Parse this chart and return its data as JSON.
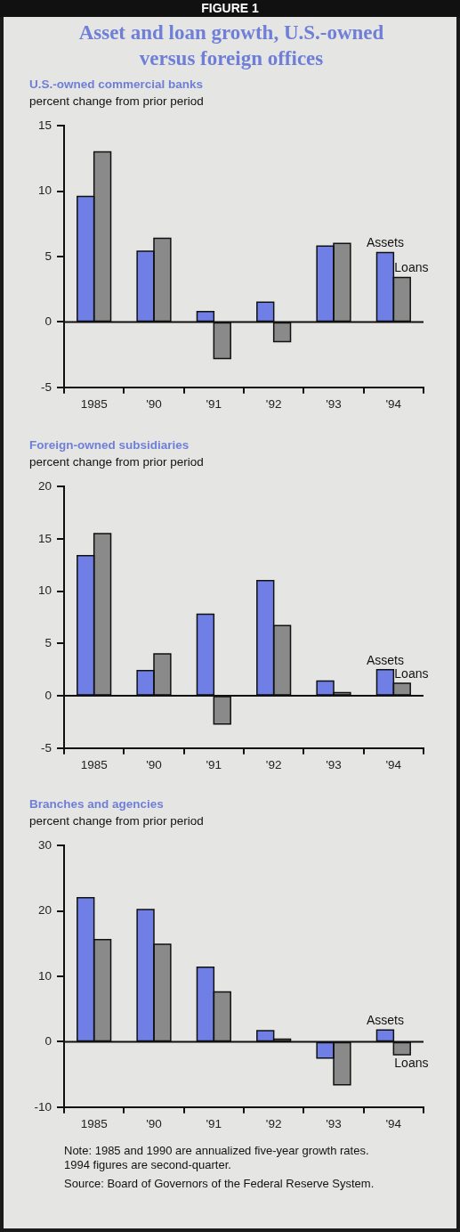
{
  "chart_data": [
    {
      "type": "bar",
      "title": "Asset and loan growth, U.S.-owned versus foreign offices",
      "subtitle": "U.S.-owned commercial banks",
      "ylabel": "percent change from prior period",
      "categories": [
        "1985",
        "'90",
        "'91",
        "'92",
        "'93",
        "'94"
      ],
      "series": [
        {
          "name": "Assets",
          "color": "#6f7fe6",
          "values": [
            9.6,
            5.4,
            0.8,
            1.5,
            5.8,
            5.3
          ]
        },
        {
          "name": "Loans",
          "color": "#8a8a8a",
          "values": [
            13.0,
            6.4,
            -2.8,
            -1.5,
            6.0,
            3.4
          ]
        }
      ],
      "ylim": [
        -5,
        15
      ],
      "yticks": [
        -5,
        0,
        5,
        10,
        15
      ],
      "legend": false,
      "annotations": [
        "FIGURE 1"
      ]
    },
    {
      "type": "bar",
      "title": "Foreign-owned subsidiaries",
      "ylabel": "percent change from prior period",
      "categories": [
        "1985",
        "'90",
        "'91",
        "'92",
        "'93",
        "'94"
      ],
      "series": [
        {
          "name": "Assets",
          "color": "#6f7fe6",
          "values": [
            13.4,
            2.4,
            7.8,
            11.0,
            1.4,
            2.5
          ]
        },
        {
          "name": "Loans",
          "color": "#8a8a8a",
          "values": [
            15.5,
            4.0,
            -2.7,
            6.7,
            0.3,
            1.2
          ]
        }
      ],
      "ylim": [
        -5,
        20
      ],
      "yticks": [
        -5,
        0,
        5,
        10,
        15,
        20
      ],
      "legend": false
    },
    {
      "type": "bar",
      "title": "Branches and agencies",
      "ylabel": "percent change from prior period",
      "categories": [
        "1985",
        "'90",
        "'91",
        "'92",
        "'93",
        "'94"
      ],
      "series": [
        {
          "name": "Assets",
          "color": "#6f7fe6",
          "values": [
            22.0,
            20.2,
            11.4,
            1.7,
            -2.5,
            1.8
          ]
        },
        {
          "name": "Loans",
          "color": "#8a8a8a",
          "values": [
            15.6,
            14.9,
            7.6,
            0.4,
            -6.6,
            -2.0
          ]
        }
      ],
      "ylim": [
        -10,
        30
      ],
      "yticks": [
        -10,
        0,
        10,
        20,
        30
      ],
      "legend": false,
      "annotations": [
        "Note: 1985 and 1990 are annualized five-year growth rates. 1994 figures are second-quarter.",
        "Source: Board of Governors of the Federal Reserve System."
      ]
    }
  ]
}
